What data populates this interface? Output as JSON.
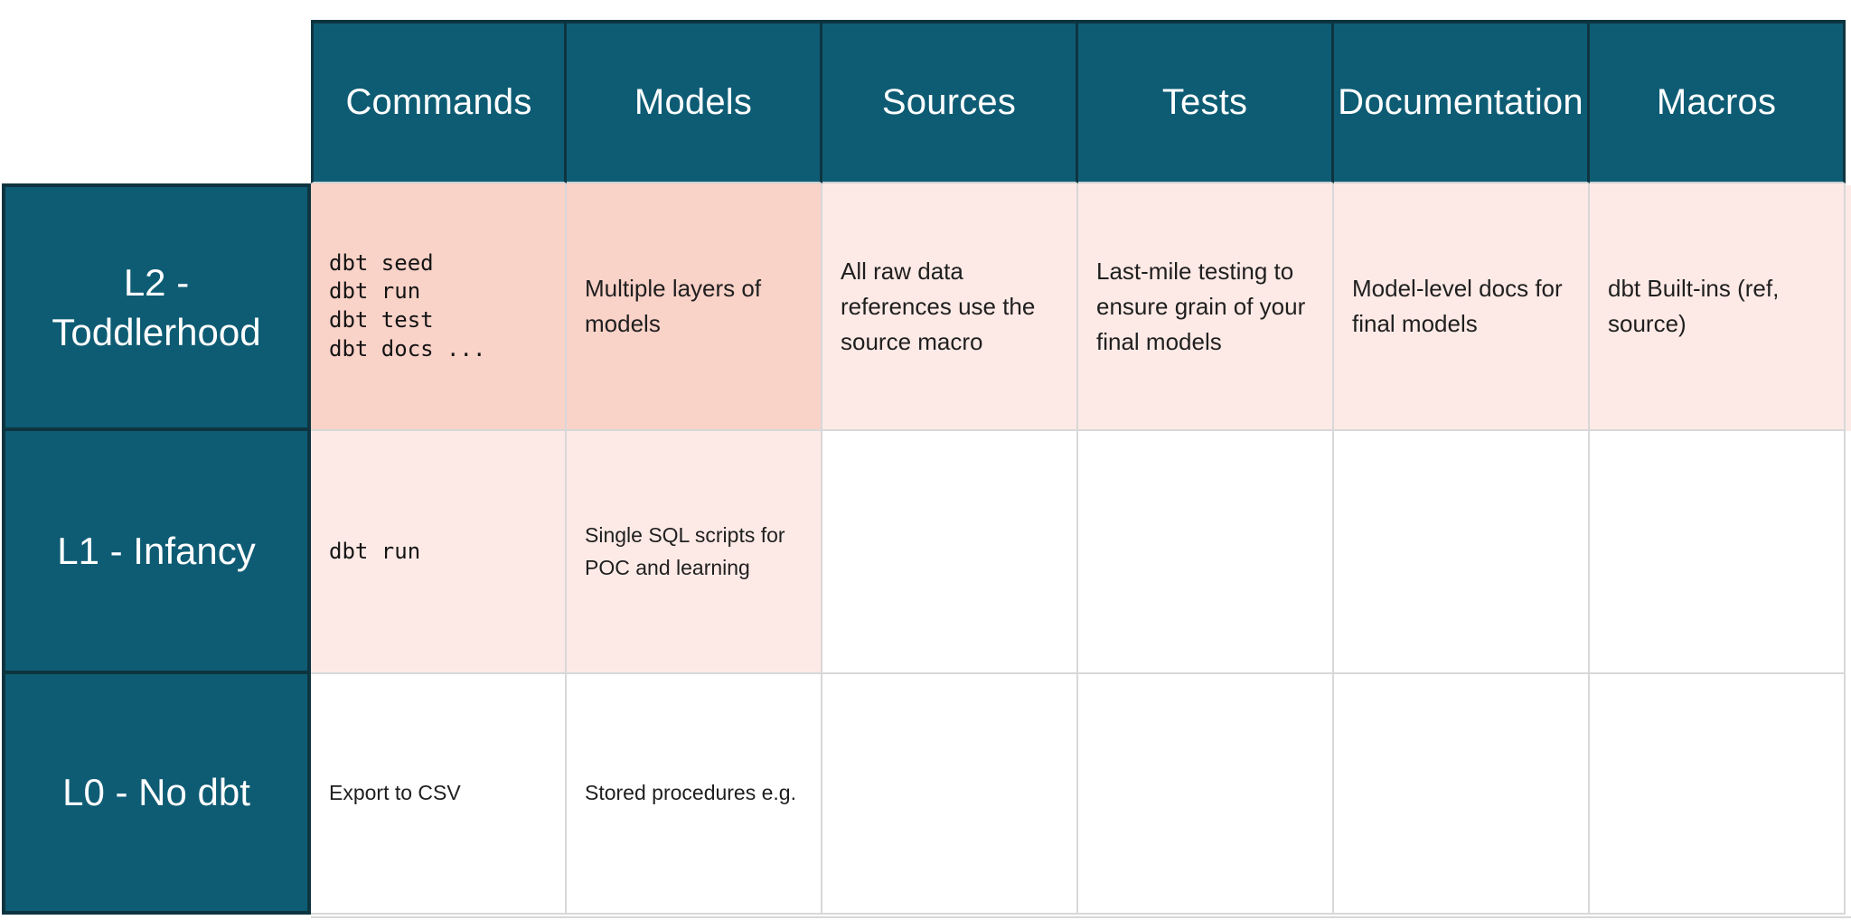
{
  "title": "dbt maturity matrix",
  "colors": {
    "header_teal": "#0e5c74",
    "teal_border": "#0e3440",
    "strong_highlight_salmon": "#f9d2c8",
    "light_highlight_pink": "#fdeae6",
    "grid_line": "#d8d8d8",
    "body_text": "#1f1f1f",
    "header_text": "#ffffff",
    "background": "#ffffff"
  },
  "table": {
    "column_headers": [
      "Commands",
      "Models",
      "Sources",
      "Tests",
      "Documentation",
      "Macros"
    ],
    "rows": [
      {
        "label": "L2 -\nToddlerhood",
        "cells": [
          {
            "text": "dbt seed\ndbt run\ndbt test\ndbt docs ...",
            "mono": true,
            "bg": "salmon"
          },
          {
            "text": "Multiple layers of models",
            "mono": false,
            "bg": "salmon"
          },
          {
            "text": "All raw data references use the source macro",
            "mono": false,
            "bg": "pink"
          },
          {
            "text": "Last-mile testing to ensure grain of your final models",
            "mono": false,
            "bg": "pink"
          },
          {
            "text": "Model-level docs for final models",
            "mono": false,
            "bg": "pink"
          },
          {
            "text": "dbt Built-ins (ref, source)",
            "mono": false,
            "bg": "pink"
          }
        ]
      },
      {
        "label": "L1 - Infancy",
        "cells": [
          {
            "text": "dbt run",
            "mono": true,
            "bg": "pink"
          },
          {
            "text": "Single SQL scripts for POC and learning",
            "mono": false,
            "bg": "pink"
          },
          {
            "text": "",
            "mono": false,
            "bg": "white"
          },
          {
            "text": "",
            "mono": false,
            "bg": "white"
          },
          {
            "text": "",
            "mono": false,
            "bg": "white"
          },
          {
            "text": "",
            "mono": false,
            "bg": "white"
          }
        ]
      },
      {
        "label": "L0 - No dbt",
        "cells": [
          {
            "text": "Export to CSV",
            "mono": false,
            "bg": "white"
          },
          {
            "text": "Stored procedures e.g.",
            "mono": false,
            "bg": "white"
          },
          {
            "text": "",
            "mono": false,
            "bg": "white"
          },
          {
            "text": "",
            "mono": false,
            "bg": "white"
          },
          {
            "text": "",
            "mono": false,
            "bg": "white"
          },
          {
            "text": "",
            "mono": false,
            "bg": "white"
          }
        ]
      }
    ]
  },
  "chart_data": {
    "type": "table",
    "title": "dbt maturity levels by capability area",
    "columns": [
      "",
      "Commands",
      "Models",
      "Sources",
      "Tests",
      "Documentation",
      "Macros"
    ],
    "rows": [
      [
        "L2 - Toddlerhood",
        "dbt seed\ndbt run\ndbt test\ndbt docs ...",
        "Multiple layers of models",
        "All raw data references use the source macro",
        "Last-mile testing to ensure grain of your final models",
        "Model-level docs for final models",
        "dbt Built-ins (ref, source)"
      ],
      [
        "L1 - Infancy",
        "dbt run",
        "Single SQL scripts for POC and learning",
        "",
        "",
        "",
        ""
      ],
      [
        "L0 - No dbt",
        "Export to CSV",
        "Stored procedures e.g.",
        "",
        "",
        "",
        ""
      ]
    ],
    "cell_shading": [
      [
        "salmon",
        "salmon",
        "pink",
        "pink",
        "pink",
        "pink"
      ],
      [
        "pink",
        "pink",
        "white",
        "white",
        "white",
        "white"
      ],
      [
        "white",
        "white",
        "white",
        "white",
        "white",
        "white"
      ]
    ],
    "layout_hints": {
      "header_row_background": "teal",
      "header_column_background": "teal",
      "grid": "light-gray lines between body cells, dark teal borders around header cells"
    }
  }
}
